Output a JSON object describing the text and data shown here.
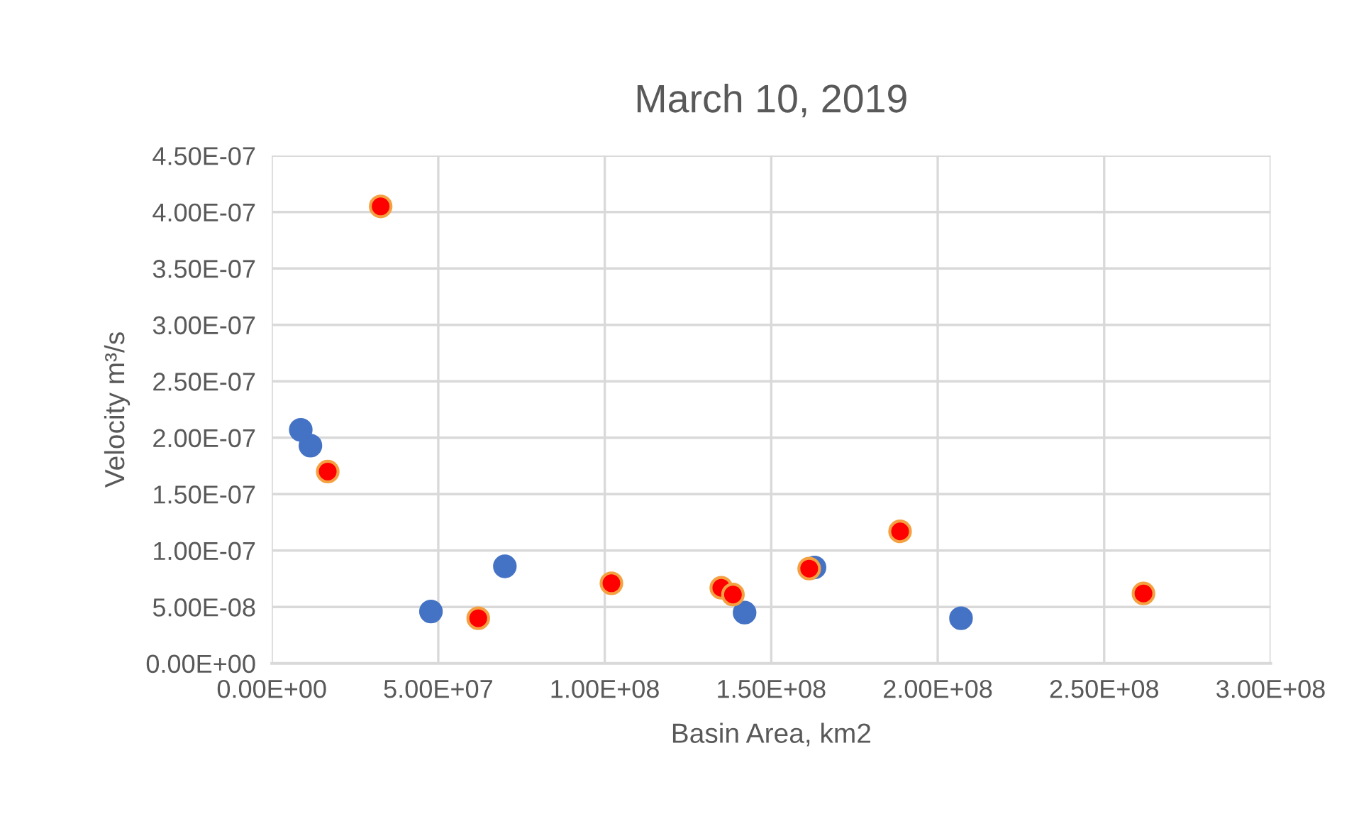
{
  "chart_data": {
    "type": "scatter",
    "title": "March 10, 2019",
    "xlabel": "Basin Area, km2",
    "ylabel": "Velocity m³/s",
    "xlim": [
      0,
      300000000
    ],
    "ylim": [
      0,
      4.5e-07
    ],
    "xticks": [
      {
        "value": 0,
        "label": "0.00E+00"
      },
      {
        "value": 50000000,
        "label": "5.00E+07"
      },
      {
        "value": 100000000,
        "label": "1.00E+08"
      },
      {
        "value": 150000000,
        "label": "1.50E+08"
      },
      {
        "value": 200000000,
        "label": "2.00E+08"
      },
      {
        "value": 250000000,
        "label": "2.50E+08"
      },
      {
        "value": 300000000,
        "label": "3.00E+08"
      }
    ],
    "yticks": [
      {
        "value": 0,
        "label": "0.00E+00"
      },
      {
        "value": 5e-08,
        "label": "5.00E-08"
      },
      {
        "value": 1e-07,
        "label": "1.00E-07"
      },
      {
        "value": 1.5e-07,
        "label": "1.50E-07"
      },
      {
        "value": 2e-07,
        "label": "2.00E-07"
      },
      {
        "value": 2.5e-07,
        "label": "2.50E-07"
      },
      {
        "value": 3e-07,
        "label": "3.00E-07"
      },
      {
        "value": 3.5e-07,
        "label": "3.50E-07"
      },
      {
        "value": 4e-07,
        "label": "4.00E-07"
      },
      {
        "value": 4.5e-07,
        "label": "4.50E-07"
      }
    ],
    "grid": true,
    "marker": "circle",
    "legend": false,
    "series": [
      {
        "color": "#4472c4",
        "x": [
          8700000,
          11600000,
          47800000,
          70000000,
          142000000,
          163000000,
          207000000
        ],
        "values": [
          2.07e-07,
          1.93e-07,
          4.6e-08,
          8.6e-08,
          4.5e-08,
          8.5e-08,
          4e-08
        ]
      },
      {
        "color": "#ff0000",
        "x": [
          32700000,
          16800000,
          62000000,
          102000000,
          135000000,
          138500000,
          161400000,
          188700000,
          261800000
        ],
        "values": [
          4.05e-07,
          1.7e-07,
          4e-08,
          7.1e-08,
          6.7e-08,
          6.1e-08,
          8.4e-08,
          1.17e-07,
          6.2e-08
        ]
      }
    ]
  }
}
